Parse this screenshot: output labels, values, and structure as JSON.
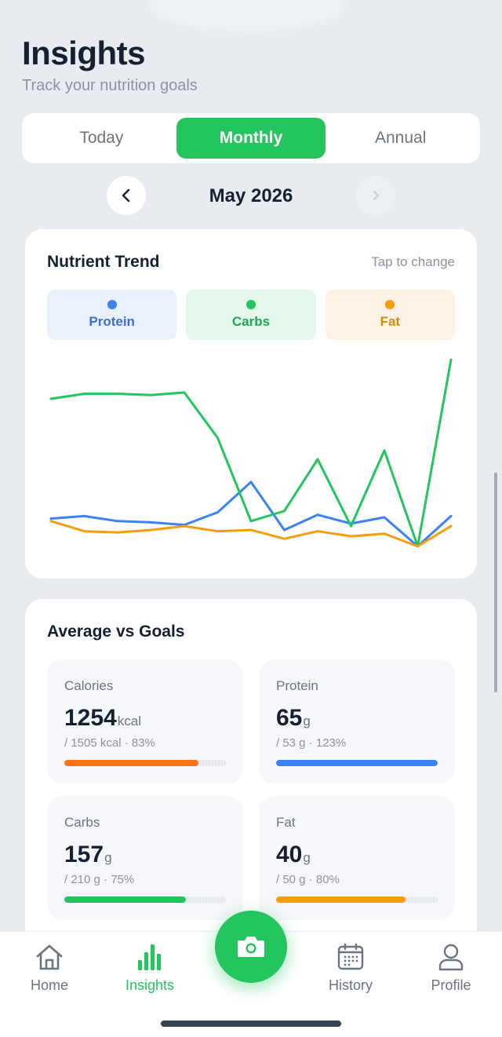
{
  "header": {
    "title": "Insights",
    "subtitle": "Track your nutrition goals"
  },
  "segment": {
    "tabs": [
      "Today",
      "Monthly",
      "Annual"
    ],
    "active": "Monthly"
  },
  "period": {
    "label": "May 2026",
    "prev_icon": "chevron-left-icon",
    "next_icon": "chevron-right-icon"
  },
  "trend": {
    "title": "Nutrient Trend",
    "hint": "Tap to change",
    "legend": [
      {
        "label": "Protein",
        "color": "#3b82f6"
      },
      {
        "label": "Carbs",
        "color": "#22c55e"
      },
      {
        "label": "Fat",
        "color": "#f59e0b"
      }
    ]
  },
  "chart_data": {
    "type": "line",
    "x": [
      1,
      2,
      3,
      4,
      5,
      6,
      7,
      8,
      9,
      10,
      11,
      12,
      13
    ],
    "series": [
      {
        "name": "Protein",
        "color": "#3b82f6",
        "values": [
          62,
          64,
          60,
          59,
          57,
          67,
          91,
          53,
          65,
          58,
          63,
          40,
          64
        ]
      },
      {
        "name": "Carbs",
        "color": "#22c55e",
        "values": [
          157,
          161,
          161,
          160,
          162,
          126,
          60,
          68,
          109,
          56,
          116,
          40,
          188
        ]
      },
      {
        "name": "Fat",
        "color": "#f59e0b",
        "values": [
          60,
          52,
          51,
          53,
          56,
          52,
          53,
          46,
          52,
          48,
          50,
          40,
          56
        ]
      }
    ],
    "ylim": [
      30,
      195
    ],
    "grid": false,
    "legend": "top"
  },
  "goals": {
    "title": "Average vs Goals",
    "items": [
      {
        "name": "Calories",
        "value": "1254",
        "unit": "kcal",
        "sub": "/ 1505 kcal · 83%",
        "percent": 83,
        "color": "#f97316"
      },
      {
        "name": "Protein",
        "value": "65",
        "unit": "g",
        "sub": "/ 53 g · 123%",
        "percent": 100,
        "color": "#3b82f6"
      },
      {
        "name": "Carbs",
        "value": "157",
        "unit": "g",
        "sub": "/ 210 g · 75%",
        "percent": 75,
        "color": "#22c55e"
      },
      {
        "name": "Fat",
        "value": "40",
        "unit": "g",
        "sub": "/ 50 g · 80%",
        "percent": 80,
        "color": "#f59e0b"
      }
    ]
  },
  "tabbar": {
    "items": [
      {
        "label": "Home",
        "icon": "home-icon"
      },
      {
        "label": "Insights",
        "icon": "bar-chart-icon"
      },
      {
        "label": "History",
        "icon": "calendar-icon"
      },
      {
        "label": "Profile",
        "icon": "user-icon"
      }
    ],
    "active": "Insights",
    "fab_icon": "camera-icon"
  }
}
